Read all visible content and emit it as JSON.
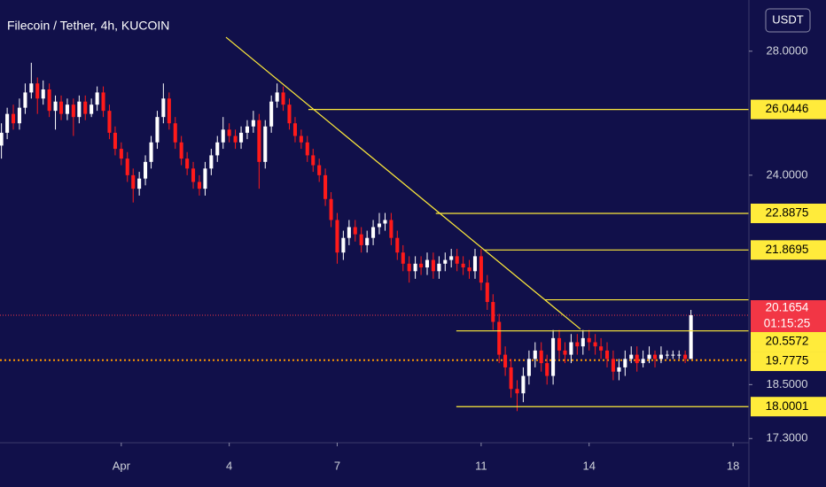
{
  "chart_data": {
    "type": "candlestick",
    "title": "Filecoin / Tether, 4h, KUCOIN",
    "currency": "USDT",
    "log_scale": true,
    "up_color": "#ffffff",
    "down_color": "#ff1a1a",
    "level_color": "#ffeb3b",
    "xlim": [
      -2.37,
      18.44
    ],
    "xticks": [
      {
        "value": 1,
        "label": "Apr"
      },
      4,
      7,
      11,
      14,
      18
    ],
    "ylim": [
      17.21,
      29.84
    ],
    "yticks": [
      {
        "value": 28,
        "label": "28.0000"
      },
      {
        "value": 24,
        "label": "24.0000"
      },
      {
        "value": 18.5,
        "label": "18.5000"
      },
      {
        "value": 17.3,
        "label": "17.3000"
      }
    ],
    "x": [
      -2.33,
      -2.17,
      -2,
      -1.83,
      -1.67,
      -1.5,
      -1.33,
      -1.17,
      -1,
      -0.83,
      -0.67,
      -0.5,
      -0.33,
      -0.17,
      0,
      0.17,
      0.33,
      0.5,
      0.67,
      0.83,
      1,
      1.17,
      1.33,
      1.5,
      1.67,
      1.83,
      2,
      2.17,
      2.33,
      2.5,
      2.67,
      2.83,
      3,
      3.17,
      3.33,
      3.5,
      3.67,
      3.83,
      4,
      4.17,
      4.33,
      4.5,
      4.67,
      4.83,
      5,
      5.17,
      5.33,
      5.5,
      5.67,
      5.83,
      6,
      6.17,
      6.33,
      6.5,
      6.67,
      6.83,
      7,
      7.17,
      7.33,
      7.5,
      7.67,
      7.83,
      8,
      8.17,
      8.33,
      8.5,
      8.67,
      8.83,
      9,
      9.17,
      9.33,
      9.5,
      9.67,
      9.83,
      10,
      10.17,
      10.33,
      10.5,
      10.67,
      10.83,
      11,
      11.17,
      11.33,
      11.5,
      11.67,
      11.83,
      12,
      12.17,
      12.33,
      12.5,
      12.67,
      12.83,
      13,
      13.17,
      13.33,
      13.5,
      13.67,
      13.83,
      14,
      14.17,
      14.33,
      14.5,
      14.67,
      14.83,
      15,
      15.17,
      15.33,
      15.5,
      15.67,
      15.83,
      16,
      16.17,
      16.33,
      16.5,
      16.67,
      16.83
    ],
    "open": [
      24.9,
      25.3,
      25.9,
      25.6,
      26.1,
      26.6,
      26.9,
      26.4,
      26.7,
      26.0,
      26.3,
      25.9,
      26.2,
      25.8,
      26.3,
      25.9,
      26.2,
      26.6,
      26.0,
      25.3,
      24.8,
      24.5,
      24.0,
      23.6,
      23.9,
      24.4,
      25.0,
      25.8,
      26.4,
      25.6,
      25.0,
      24.5,
      24.2,
      23.8,
      23.6,
      24.2,
      24.6,
      25.0,
      25.4,
      25.2,
      25.0,
      25.3,
      25.5,
      25.7,
      24.4,
      25.5,
      26.3,
      26.6,
      26.2,
      25.6,
      25.2,
      25.0,
      24.6,
      24.3,
      24.0,
      23.3,
      22.7,
      21.8,
      22.2,
      22.5,
      22.3,
      22.0,
      22.2,
      22.5,
      22.6,
      22.7,
      22.2,
      21.8,
      21.5,
      21.3,
      21.5,
      21.4,
      21.6,
      21.3,
      21.5,
      21.6,
      21.7,
      21.5,
      21.4,
      21.3,
      21.7,
      21.0,
      20.5,
      20.0,
      19.2,
      18.9,
      18.4,
      18.3,
      18.7,
      19.1,
      19.3,
      19.0,
      18.7,
      19.6,
      19.3,
      19.2,
      19.5,
      19.4,
      19.6,
      19.5,
      19.4,
      19.3,
      19.1,
      18.8,
      18.9,
      19.1,
      19.2,
      19.0,
      19.1,
      19.2,
      19.1,
      19.2,
      19.2,
      19.2,
      19.2,
      19.1
    ],
    "high": [
      25.6,
      26.1,
      26.2,
      26.4,
      26.9,
      27.6,
      27.1,
      27.0,
      26.9,
      26.5,
      26.5,
      26.4,
      26.4,
      26.5,
      26.5,
      26.4,
      26.8,
      26.8,
      26.2,
      25.5,
      25.0,
      24.7,
      24.2,
      24.1,
      24.6,
      25.2,
      26.0,
      26.9,
      26.6,
      25.8,
      25.2,
      24.7,
      24.4,
      24.0,
      24.4,
      24.8,
      25.2,
      25.8,
      25.6,
      25.4,
      25.5,
      25.7,
      26.0,
      25.9,
      25.7,
      26.5,
      26.9,
      26.8,
      26.4,
      25.8,
      25.4,
      25.2,
      24.8,
      24.5,
      24.2,
      23.5,
      22.9,
      22.4,
      22.7,
      22.7,
      22.5,
      22.4,
      22.7,
      22.9,
      22.9,
      22.9,
      22.4,
      22.0,
      21.7,
      21.7,
      21.7,
      21.8,
      21.8,
      21.7,
      21.8,
      21.9,
      21.9,
      21.7,
      21.6,
      21.9,
      21.9,
      21.2,
      20.7,
      20.2,
      19.4,
      19.1,
      18.6,
      18.9,
      19.3,
      19.5,
      19.5,
      19.2,
      19.8,
      19.8,
      19.5,
      19.7,
      19.7,
      19.8,
      19.8,
      19.7,
      19.6,
      19.5,
      19.3,
      19.1,
      19.3,
      19.4,
      19.4,
      19.3,
      19.4,
      19.3,
      19.4,
      19.3,
      19.3,
      19.3,
      19.3,
      20.3
    ],
    "low": [
      24.5,
      25.1,
      25.4,
      25.4,
      25.9,
      26.4,
      25.9,
      26.2,
      25.8,
      25.4,
      25.7,
      25.7,
      25.2,
      25.6,
      25.7,
      25.8,
      26.0,
      25.8,
      25.1,
      24.6,
      24.3,
      23.8,
      23.2,
      23.4,
      23.7,
      24.2,
      24.8,
      25.6,
      25.4,
      24.8,
      24.3,
      24.0,
      23.6,
      23.4,
      23.4,
      24.0,
      24.4,
      24.8,
      25.0,
      24.8,
      24.8,
      25.1,
      25.3,
      23.6,
      24.2,
      25.3,
      26.1,
      26.0,
      25.4,
      25.0,
      24.8,
      24.4,
      24.1,
      23.8,
      23.1,
      22.5,
      21.5,
      21.6,
      22.0,
      22.1,
      21.8,
      21.8,
      22.0,
      22.3,
      22.4,
      22.0,
      21.6,
      21.3,
      21.0,
      21.1,
      21.2,
      21.2,
      21.1,
      21.1,
      21.3,
      21.4,
      21.3,
      21.2,
      21.1,
      21.1,
      20.8,
      20.3,
      19.8,
      19.0,
      18.7,
      18.2,
      17.9,
      18.1,
      18.5,
      18.9,
      18.8,
      18.5,
      18.5,
      19.1,
      19.0,
      19.0,
      19.2,
      19.2,
      19.3,
      19.2,
      19.1,
      18.9,
      18.6,
      18.6,
      18.7,
      19.0,
      18.8,
      18.9,
      19.0,
      18.9,
      19.0,
      19.1,
      19.1,
      19.1,
      19.0,
      19.1
    ],
    "close": [
      25.3,
      25.9,
      25.6,
      26.1,
      26.6,
      26.9,
      26.4,
      26.7,
      26.0,
      26.3,
      25.9,
      26.2,
      25.8,
      26.3,
      25.9,
      26.2,
      26.6,
      26.0,
      25.3,
      24.8,
      24.5,
      24.0,
      23.6,
      23.9,
      24.4,
      25.0,
      25.8,
      26.4,
      25.6,
      25.0,
      24.5,
      24.2,
      23.8,
      23.6,
      24.2,
      24.6,
      25.0,
      25.4,
      25.2,
      25.0,
      25.3,
      25.5,
      25.7,
      24.4,
      25.5,
      26.3,
      26.6,
      26.2,
      25.6,
      25.2,
      25.0,
      24.6,
      24.3,
      24.0,
      23.3,
      22.7,
      21.8,
      22.2,
      22.5,
      22.3,
      22.0,
      22.2,
      22.5,
      22.6,
      22.7,
      22.2,
      21.8,
      21.5,
      21.3,
      21.5,
      21.4,
      21.6,
      21.3,
      21.5,
      21.6,
      21.7,
      21.5,
      21.4,
      21.3,
      21.7,
      21.0,
      20.5,
      20.0,
      19.2,
      18.9,
      18.4,
      18.3,
      18.7,
      19.1,
      19.3,
      19.0,
      18.7,
      19.6,
      19.3,
      19.2,
      19.5,
      19.4,
      19.6,
      19.5,
      19.4,
      19.3,
      19.1,
      18.8,
      18.9,
      19.1,
      19.2,
      19.0,
      19.1,
      19.2,
      19.1,
      19.2,
      19.2,
      19.2,
      19.2,
      19.1,
      20.1654
    ],
    "levels": [
      {
        "value": 26.0446,
        "from": 6.2
      },
      {
        "value": 22.8875,
        "from": 9.74
      },
      {
        "value": 21.8695,
        "from": 11.07
      },
      {
        "value": 20.5572,
        "from": 12.77
      },
      {
        "value": 19.7775,
        "from": 10.31
      },
      {
        "value": 18.0001,
        "from": 10.31
      }
    ],
    "trendline": {
      "x": [
        3.91,
        13.76
      ],
      "y": [
        28.49,
        19.82
      ]
    },
    "price_line": 19.07,
    "current_price": {
      "value": 20.1654,
      "countdown": "01:15:25",
      "color": "#f23645"
    }
  }
}
